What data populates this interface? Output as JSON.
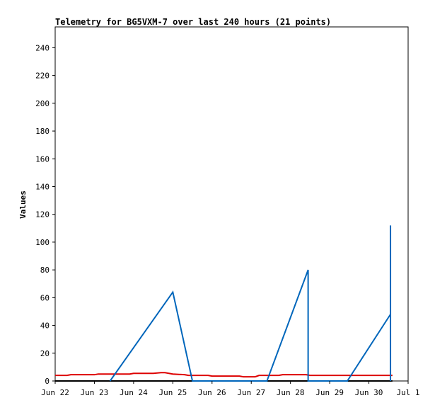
{
  "chart_data": {
    "type": "line",
    "title": "Telemetry for BG5VXM-7 over last 240 hours (21 points)",
    "xlabel": "",
    "ylabel": "Values",
    "x_tick_labels": [
      "Jun 22",
      "Jun 23",
      "Jun 24",
      "Jun 25",
      "Jun 26",
      "Jun 27",
      "Jun 28",
      "Jun 29",
      "Jun 30",
      "Jul 1"
    ],
    "xlim": [
      0,
      9
    ],
    "y_ticks": [
      0,
      20,
      40,
      60,
      80,
      100,
      120,
      140,
      160,
      180,
      200,
      220,
      240
    ],
    "ylim": [
      0,
      255
    ],
    "grid": false,
    "series": [
      {
        "color": "#000000",
        "x": [
          0,
          8.6
        ],
        "y": [
          0,
          0
        ]
      },
      {
        "color": "#dd0000",
        "x": [
          0,
          0.3,
          0.4,
          1.0,
          1.1,
          1.9,
          2.0,
          2.5,
          2.7,
          2.8,
          3.0,
          3.3,
          3.4,
          3.9,
          4.0,
          4.7,
          4.8,
          5.1,
          5.2,
          5.7,
          5.8,
          6.4,
          6.5,
          7.0,
          7.5,
          8.0,
          8.6
        ],
        "y": [
          4,
          4,
          4.5,
          4.5,
          5,
          5,
          5.5,
          5.5,
          6,
          6,
          5,
          4.5,
          4,
          4,
          3.5,
          3.5,
          3,
          3,
          4,
          4,
          4.5,
          4.5,
          4,
          4,
          4,
          4,
          4
        ]
      },
      {
        "color": "#0066bb",
        "x": [
          1.4,
          3.0,
          3.5,
          5.4,
          6.45,
          6.45,
          7.45,
          8.55,
          8.55,
          8.55
        ],
        "y": [
          0,
          64,
          0,
          0,
          80,
          0,
          0,
          48,
          112,
          0
        ]
      }
    ]
  }
}
